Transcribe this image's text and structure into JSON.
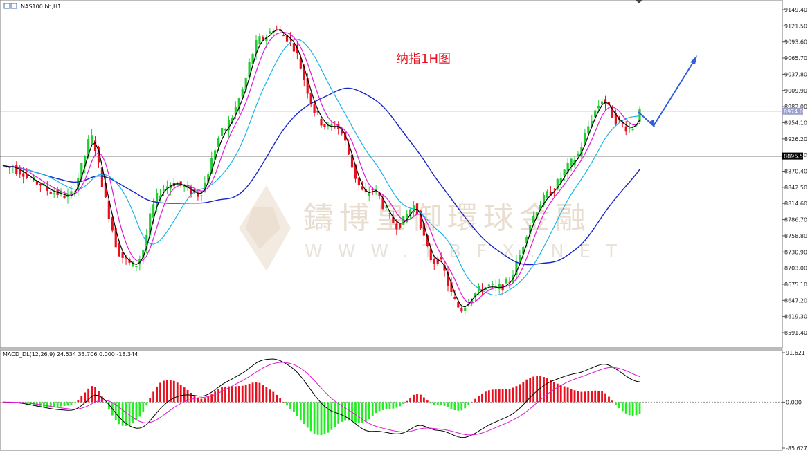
{
  "chart_data": [
    {
      "type": "candlestick",
      "symbol_label": "NAS100.bb,H1",
      "annotation": "纳指1H图",
      "watermark_cn": "鑄博皇御環球金融",
      "watermark_en": "WWW.TBFX.NET",
      "y_ticks": [
        "9149.40",
        "9121.50",
        "9093.60",
        "9065.70",
        "9037.80",
        "9009.90",
        "8982.00",
        "8954.10",
        "8926.20",
        "8898.30",
        "8870.40",
        "8842.50",
        "8814.60",
        "8786.70",
        "8758.80",
        "8730.90",
        "8703.00",
        "8675.10",
        "8647.20",
        "8619.30",
        "8591.40"
      ],
      "ylim": [
        8571,
        9157
      ],
      "current_price": 8974.0,
      "current_price_label": "8974.00",
      "level_price": 8896.56,
      "level_price_label": "8896.56",
      "close_path": [
        8880,
        8878,
        8876,
        8880,
        8872,
        8870,
        8868,
        8860,
        8858,
        8853,
        8850,
        8848,
        8843,
        8838,
        8836,
        8834,
        8832,
        8830,
        8828,
        8826,
        8830,
        8840,
        8860,
        8878,
        8898,
        8920,
        8928,
        8910,
        8880,
        8850,
        8820,
        8795,
        8770,
        8745,
        8730,
        8722,
        8716,
        8710,
        8708,
        8710,
        8720,
        8735,
        8760,
        8790,
        8810,
        8825,
        8835,
        8840,
        8845,
        8848,
        8850,
        8848,
        8846,
        8843,
        8840,
        8835,
        8832,
        8830,
        8835,
        8850,
        8870,
        8890,
        8910,
        8928,
        8938,
        8945,
        8955,
        8965,
        8980,
        8995,
        9010,
        9030,
        9055,
        9075,
        9090,
        9098,
        9100,
        9105,
        9110,
        9118,
        9115,
        9110,
        9105,
        9100,
        9095,
        9085,
        9070,
        9050,
        9030,
        9010,
        8990,
        8975,
        8965,
        8955,
        8950,
        8945,
        8948,
        8950,
        8945,
        8935,
        8920,
        8900,
        8880,
        8860,
        8845,
        8835,
        8830,
        8835,
        8840,
        8835,
        8825,
        8812,
        8800,
        8790,
        8783,
        8778,
        8780,
        8785,
        8795,
        8805,
        8810,
        8800,
        8780,
        8755,
        8735,
        8720,
        8715,
        8718,
        8710,
        8695,
        8675,
        8658,
        8645,
        8636,
        8632,
        8640,
        8648,
        8655,
        8660,
        8665,
        8668,
        8670,
        8672,
        8670,
        8668,
        8670,
        8672,
        8676,
        8682,
        8695,
        8710,
        8725,
        8745,
        8765,
        8780,
        8792,
        8805,
        8815,
        8822,
        8830,
        8835,
        8840,
        8850,
        8860,
        8870,
        8878,
        8885,
        8892,
        8900,
        8915,
        8932,
        8948,
        8962,
        8975,
        8985,
        8995,
        8988,
        8978,
        8968,
        8960,
        8955,
        8950,
        8946,
        8944,
        8948,
        8958,
        8970
      ],
      "overlays": {
        "ma_black": "fast moving average",
        "ma_magenta": "medium moving average",
        "ma_cyan": "slow moving average",
        "ma_blue": "long moving average"
      },
      "colors": {
        "up": "#22cc33",
        "down": "#e8101e",
        "ma_black": "#000000",
        "ma_magenta": "#e018d8",
        "ma_cyan": "#18b4ea",
        "ma_blue": "#1424c8",
        "arrow": "#3060d8"
      }
    },
    {
      "type": "bar",
      "label": "MACD_DL(12,26,9) 24.534 33.706 0.000 -18.344",
      "y_ticks": [
        "91.621",
        "0.000",
        "-85.627"
      ],
      "ylim": [
        -85.627,
        91.621
      ],
      "colors": {
        "positive": "#e8101e",
        "negative": "#22ee22",
        "macd": "#000000",
        "signal": "#e018d8"
      }
    }
  ]
}
